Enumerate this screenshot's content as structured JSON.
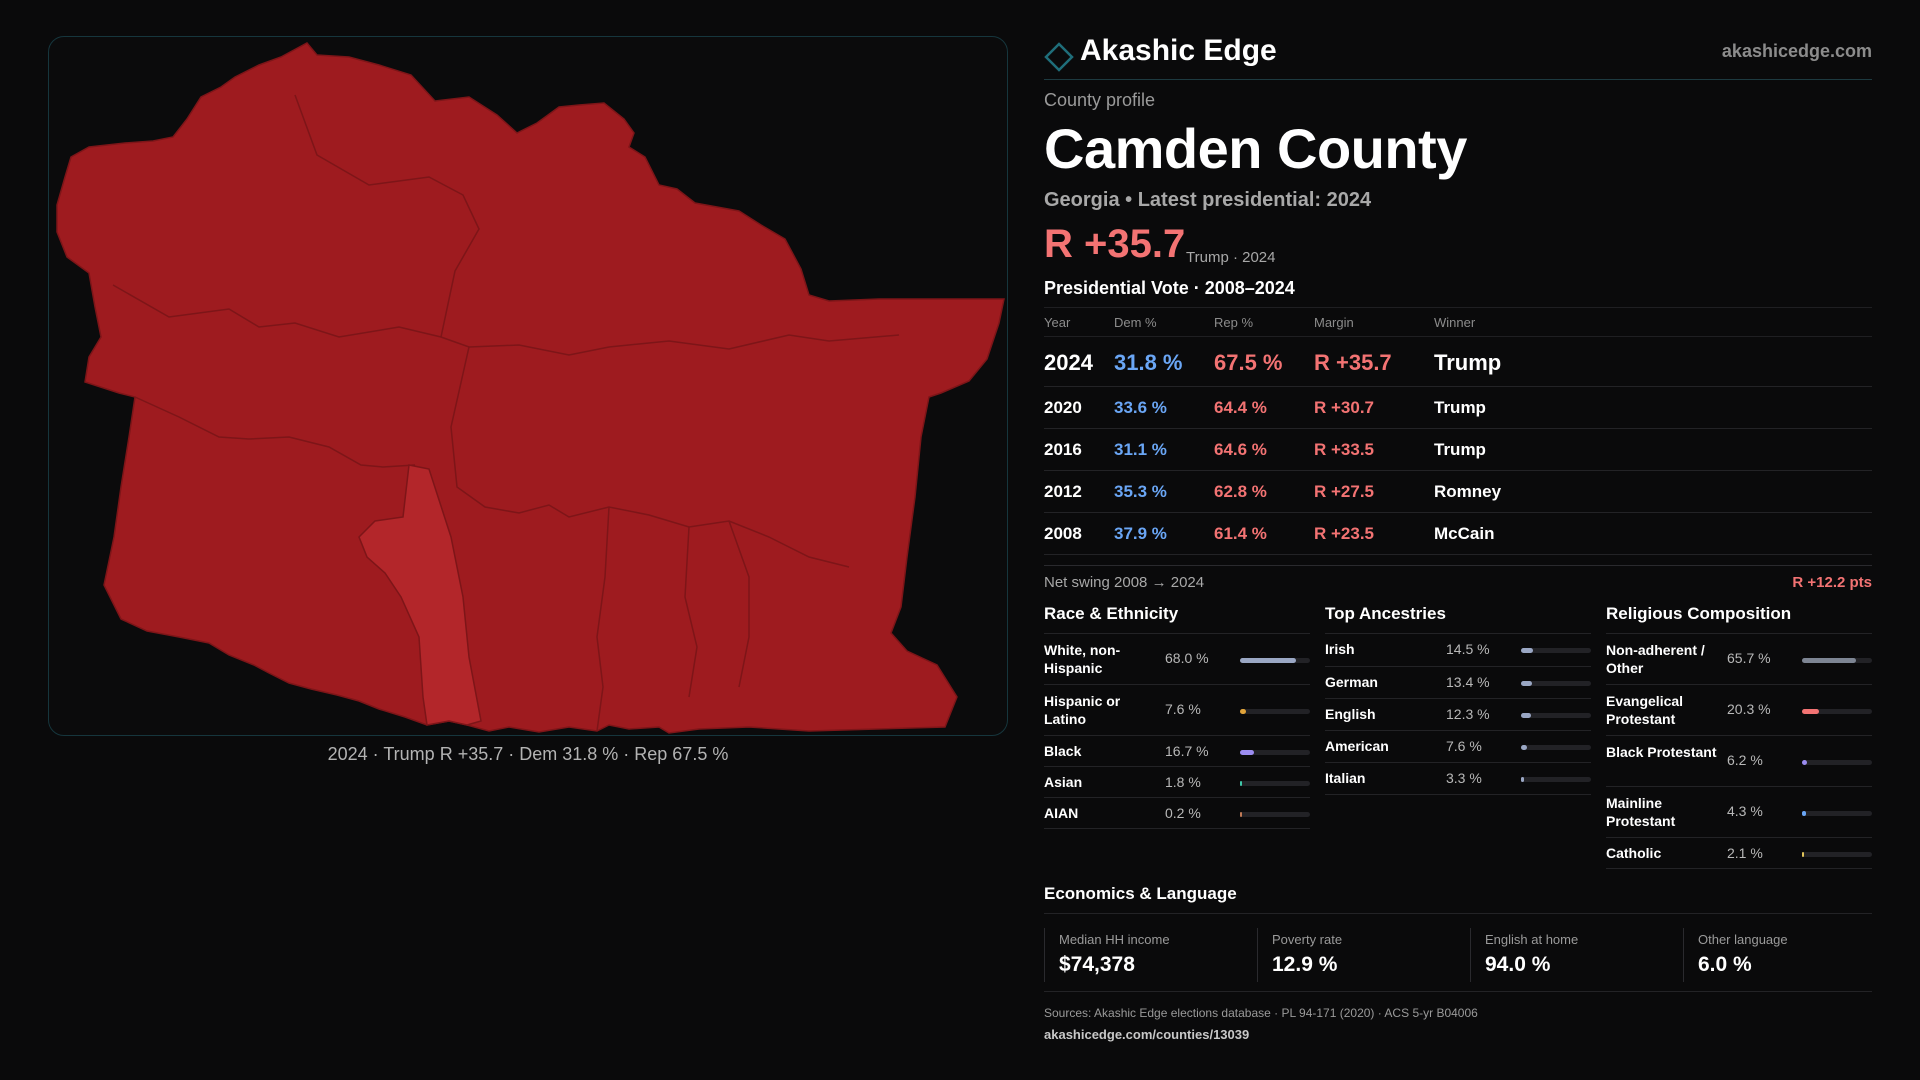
{
  "brand": {
    "name": "Akashic Edge",
    "url": "akashicedge.com",
    "accent": "#1f6e7a",
    "mark_icon": "diamond-icon"
  },
  "map": {
    "caption": "2024 · Trump R +35.7 · Dem 31.8 % · Rep 67.5 %",
    "fill_color": "#9e1b1f",
    "highlight_color": "#b3262a",
    "border_color": "#7d1518"
  },
  "profile": {
    "kicker": "County profile",
    "title": "Camden County",
    "subtitle": "Georgia • Latest presidential: 2024",
    "margin": "R +35.7",
    "margin_note": "Trump · 2024"
  },
  "vote": {
    "title": "Presidential Vote · 2008–2024",
    "headers": {
      "year": "Year",
      "dem": "Dem %",
      "rep": "Rep %",
      "margin": "Margin",
      "winner": "Winner"
    },
    "rows": [
      {
        "year": "2024",
        "dem": "31.8 %",
        "rep": "67.5 %",
        "margin": "R +35.7",
        "winner": "Trump"
      },
      {
        "year": "2020",
        "dem": "33.6 %",
        "rep": "64.4 %",
        "margin": "R +30.7",
        "winner": "Trump"
      },
      {
        "year": "2016",
        "dem": "31.1 %",
        "rep": "64.6 %",
        "margin": "R +33.5",
        "winner": "Trump"
      },
      {
        "year": "2012",
        "dem": "35.3 %",
        "rep": "62.8 %",
        "margin": "R +27.5",
        "winner": "Romney"
      },
      {
        "year": "2008",
        "dem": "37.9 %",
        "rep": "61.4 %",
        "margin": "R +23.5",
        "winner": "McCain"
      }
    ],
    "swing_label": "Net swing 2008 → 2024",
    "swing_value": "R +12.2 pts"
  },
  "race": {
    "title": "Race & Ethnicity",
    "rows": [
      {
        "label": "White, non-Hispanic",
        "value": "68.0 %",
        "fraction": 0.68,
        "color": "#9aa7c4"
      },
      {
        "label": "Hispanic or Latino",
        "value": "7.6 %",
        "fraction": 0.076,
        "color": "#e0a33a"
      },
      {
        "label": "Black",
        "value": "16.7 %",
        "fraction": 0.167,
        "color": "#9b8cf0"
      },
      {
        "label": "Asian",
        "value": "1.8 %",
        "fraction": 0.018,
        "color": "#3fc6a8"
      },
      {
        "label": "AIAN",
        "value": "0.2 %",
        "fraction": 0.002,
        "color": "#c07a56"
      }
    ]
  },
  "ancestry": {
    "title": "Top Ancestries",
    "rows": [
      {
        "label": "Irish",
        "value": "14.5 %",
        "fraction": 0.145,
        "color": "#9aa7c4"
      },
      {
        "label": "German",
        "value": "13.4 %",
        "fraction": 0.134,
        "color": "#9aa7c4"
      },
      {
        "label": "English",
        "value": "12.3 %",
        "fraction": 0.123,
        "color": "#9aa7c4"
      },
      {
        "label": "American",
        "value": "7.6 %",
        "fraction": 0.076,
        "color": "#9aa7c4"
      },
      {
        "label": "Italian",
        "value": "3.3 %",
        "fraction": 0.033,
        "color": "#9aa7c4"
      }
    ]
  },
  "religion": {
    "title": "Religious Composition",
    "rows": [
      {
        "label": "Non-adherent / Other",
        "value": "65.7 %",
        "fraction": 0.657,
        "color": "#7d8593"
      },
      {
        "label": "Evangelical Protestant",
        "value": "20.3 %",
        "fraction": 0.203,
        "color": "#f37373"
      },
      {
        "label": "Black Protestant",
        "value": "6.2 %",
        "fraction": 0.062,
        "color": "#9b8cf0"
      },
      {
        "label": "Mainline Protestant",
        "value": "4.3 %",
        "fraction": 0.043,
        "color": "#6aa6f5"
      },
      {
        "label": "Catholic",
        "value": "2.1 %",
        "fraction": 0.021,
        "color": "#e0c35a"
      }
    ]
  },
  "economics": {
    "title": "Economics & Language",
    "cells": [
      {
        "label": "Median HH income",
        "value": "$74,378"
      },
      {
        "label": "Poverty rate",
        "value": "12.9 %"
      },
      {
        "label": "English at home",
        "value": "94.0 %"
      },
      {
        "label": "Other language",
        "value": "6.0 %"
      }
    ]
  },
  "sources": {
    "text": "Sources: Akashic Edge elections database · PL 94-171 (2020) · ACS 5-yr B04006",
    "url": "akashicedge.com/counties/13039"
  }
}
